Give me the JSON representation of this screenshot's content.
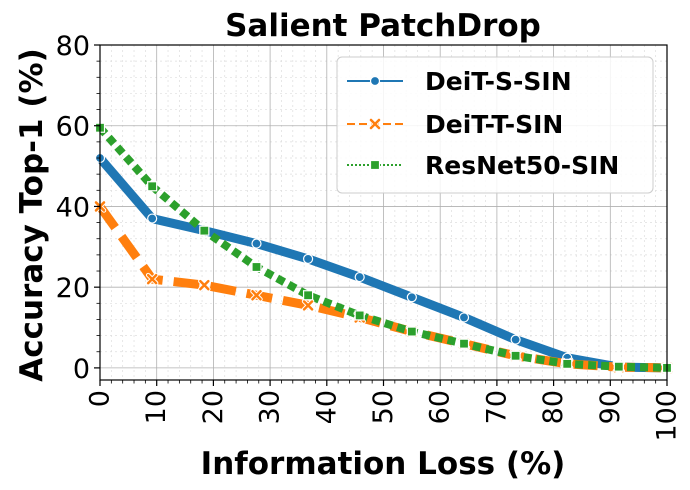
{
  "chart_data": {
    "type": "line",
    "title": "Salient PatchDrop",
    "xlabel": "Information Loss (%)",
    "ylabel": "Accuracy Top-1 (%)",
    "xlim": [
      0,
      100
    ],
    "ylim": [
      -3,
      80
    ],
    "xticks": [
      "0",
      "10",
      "20",
      "30",
      "40",
      "50",
      "60",
      "70",
      "80",
      "90",
      "100"
    ],
    "yticks": [
      "0",
      "20",
      "40",
      "60",
      "80"
    ],
    "grid": true,
    "legend_position": "top-right",
    "x": [
      0,
      9.2,
      18.4,
      27.6,
      36.7,
      45.8,
      55,
      64.2,
      73.3,
      82.4,
      91.5,
      100
    ],
    "series": [
      {
        "name": "DeiT-S-SIN",
        "color": "#1f77b4",
        "line_style": "solid",
        "marker": "circle",
        "values": [
          52,
          37,
          34,
          30.8,
          27,
          22.5,
          17.5,
          12.5,
          7,
          2.5,
          0.2,
          0
        ]
      },
      {
        "name": "DeiT-T-SIN",
        "color": "#ff7f0e",
        "line_style": "dashed",
        "marker": "x",
        "values": [
          40,
          22,
          20.5,
          18,
          15.5,
          12.5,
          9,
          6,
          3,
          1,
          0.2,
          0
        ]
      },
      {
        "name": "ResNet50-SIN",
        "color": "#2ca02c",
        "line_style": "dotted",
        "marker": "square",
        "values": [
          59.5,
          45,
          34,
          25,
          18,
          13,
          9,
          6,
          3,
          1,
          0.3,
          0
        ]
      }
    ]
  }
}
